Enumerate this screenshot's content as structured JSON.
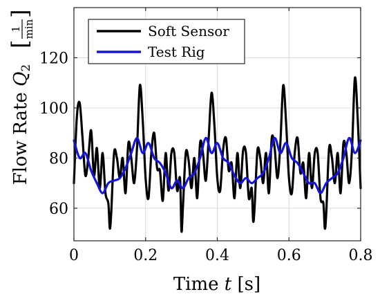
{
  "chart_data": {
    "type": "line",
    "title": "",
    "xlabel": {
      "pre": "Time ",
      "var": "t",
      "post": " [s]"
    },
    "ylabel": {
      "pre": "Flow Rate ",
      "var": "Q",
      "sub": "2",
      "unit_num": "1",
      "unit_den": "min"
    },
    "xlim": [
      0,
      0.8
    ],
    "ylim": [
      47,
      140
    ],
    "xticks": [
      0,
      0.2,
      0.4,
      0.6,
      0.8
    ],
    "xtick_labels": [
      "0",
      "0.2",
      "0.4",
      "0.6",
      "0.8"
    ],
    "yticks": [
      60,
      80,
      100,
      120
    ],
    "ytick_labels": [
      "60",
      "80",
      "100",
      "120"
    ],
    "grid": true,
    "legend_position": "top-left",
    "series": [
      {
        "name": "Soft Sensor",
        "color": "#000000",
        "x": [
          0,
          0.008,
          0.016,
          0.024,
          0.032,
          0.04,
          0.048,
          0.056,
          0.064,
          0.072,
          0.08,
          0.088,
          0.096,
          0.1,
          0.104,
          0.112,
          0.12,
          0.128,
          0.136,
          0.144,
          0.152,
          0.16,
          0.168,
          0.176,
          0.184,
          0.192,
          0.2,
          0.208,
          0.216,
          0.224,
          0.232,
          0.24,
          0.248,
          0.256,
          0.264,
          0.272,
          0.28,
          0.288,
          0.296,
          0.3,
          0.304,
          0.312,
          0.32,
          0.328,
          0.336,
          0.344,
          0.352,
          0.36,
          0.368,
          0.376,
          0.384,
          0.392,
          0.4,
          0.408,
          0.416,
          0.424,
          0.432,
          0.44,
          0.448,
          0.456,
          0.464,
          0.472,
          0.48,
          0.488,
          0.496,
          0.5,
          0.504,
          0.512,
          0.52,
          0.528,
          0.536,
          0.544,
          0.552,
          0.56,
          0.568,
          0.576,
          0.584,
          0.592,
          0.6,
          0.608,
          0.616,
          0.624,
          0.632,
          0.64,
          0.648,
          0.656,
          0.664,
          0.672,
          0.68,
          0.688,
          0.696,
          0.7,
          0.704,
          0.712,
          0.72,
          0.728,
          0.736,
          0.744,
          0.752,
          0.76,
          0.768,
          0.776,
          0.784,
          0.792,
          0.8
        ],
        "y": [
          70,
          96,
          102,
          88,
          73,
          80,
          91,
          73,
          84,
          68,
          82,
          66,
          62,
          52,
          58,
          82,
          80,
          72,
          80,
          66,
          86,
          80,
          70,
          84,
          109,
          95,
          72,
          64,
          82,
          90,
          76,
          75,
          63,
          82,
          67,
          82,
          82,
          67,
          72,
          51,
          60,
          82,
          79,
          68,
          80,
          64,
          86,
          82,
          71,
          88,
          106,
          93,
          72,
          67,
          83,
          88,
          75,
          78,
          64,
          82,
          68,
          83,
          82,
          64,
          68,
          55,
          60,
          83,
          80,
          70,
          82,
          66,
          88,
          84,
          72,
          86,
          109,
          94,
          72,
          66,
          82,
          88,
          74,
          78,
          64,
          82,
          68,
          82,
          82,
          64,
          62,
          52,
          58,
          84,
          80,
          70,
          82,
          66,
          86,
          82,
          70,
          84,
          112,
          95,
          68
        ]
      },
      {
        "name": "Test Rig",
        "color": "#1414dc",
        "x": [
          0,
          0.016,
          0.032,
          0.048,
          0.064,
          0.08,
          0.096,
          0.112,
          0.128,
          0.144,
          0.16,
          0.176,
          0.192,
          0.208,
          0.224,
          0.24,
          0.256,
          0.272,
          0.288,
          0.304,
          0.32,
          0.336,
          0.352,
          0.368,
          0.384,
          0.4,
          0.416,
          0.432,
          0.448,
          0.464,
          0.48,
          0.496,
          0.512,
          0.528,
          0.544,
          0.56,
          0.576,
          0.592,
          0.608,
          0.624,
          0.64,
          0.656,
          0.672,
          0.688,
          0.704,
          0.72,
          0.736,
          0.752,
          0.768,
          0.784,
          0.8
        ],
        "y": [
          87,
          80,
          82,
          75,
          70,
          66,
          70,
          71,
          72,
          76,
          82,
          88,
          82,
          86,
          80,
          78,
          74,
          68,
          71,
          68,
          72,
          74,
          80,
          88,
          82,
          86,
          80,
          78,
          73,
          70,
          72,
          70,
          72,
          74,
          80,
          88,
          82,
          86,
          80,
          78,
          74,
          70,
          70,
          66,
          70,
          72,
          74,
          80,
          88,
          82,
          87
        ]
      }
    ]
  }
}
